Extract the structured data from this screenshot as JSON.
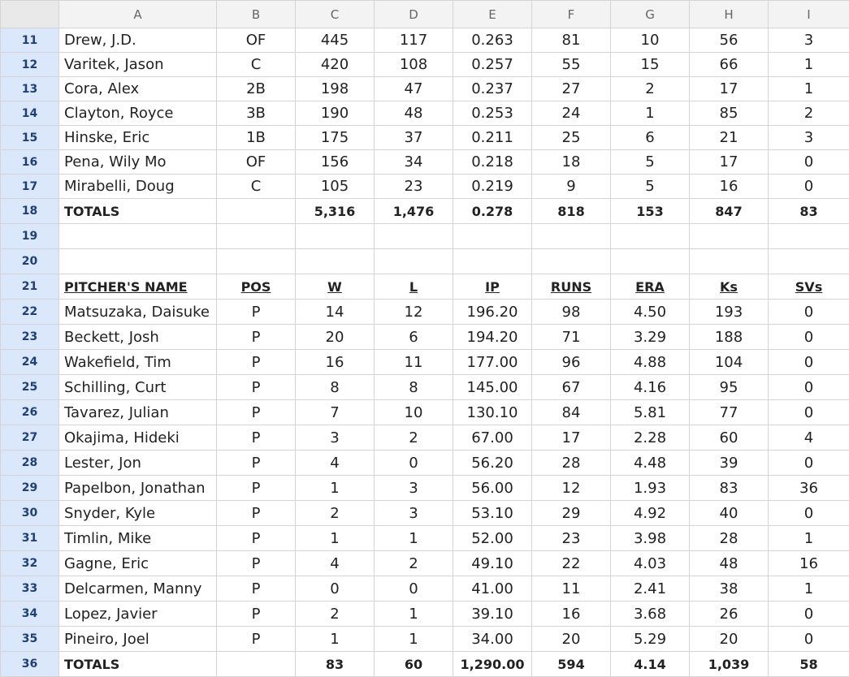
{
  "columns": [
    "A",
    "B",
    "C",
    "D",
    "E",
    "F",
    "G",
    "H",
    "I"
  ],
  "rows": [
    {
      "num": "11",
      "cells": [
        "Drew, J.D.",
        "OF",
        "445",
        "117",
        "0.263",
        "81",
        "10",
        "56",
        "3"
      ]
    },
    {
      "num": "12",
      "cells": [
        "Varitek, Jason",
        "C",
        "420",
        "108",
        "0.257",
        "55",
        "15",
        "66",
        "1"
      ]
    },
    {
      "num": "13",
      "cells": [
        "Cora, Alex",
        "2B",
        "198",
        "47",
        "0.237",
        "27",
        "2",
        "17",
        "1"
      ]
    },
    {
      "num": "14",
      "cells": [
        "Clayton, Royce",
        "3B",
        "190",
        "48",
        "0.253",
        "24",
        "1",
        "85",
        "2"
      ]
    },
    {
      "num": "15",
      "cells": [
        "Hinske, Eric",
        "1B",
        "175",
        "37",
        "0.211",
        "25",
        "6",
        "21",
        "3"
      ]
    },
    {
      "num": "16",
      "cells": [
        "Pena, Wily Mo",
        "OF",
        "156",
        "34",
        "0.218",
        "18",
        "5",
        "17",
        "0"
      ]
    },
    {
      "num": "17",
      "cells": [
        "Mirabelli, Doug",
        "C",
        "105",
        "23",
        "0.219",
        "9",
        "5",
        "16",
        "0"
      ]
    },
    {
      "num": "18",
      "type": "totals",
      "cells": [
        "TOTALS",
        "",
        "5,316",
        "1,476",
        "0.278",
        "818",
        "153",
        "847",
        "83"
      ]
    },
    {
      "num": "19",
      "cells": [
        "",
        "",
        "",
        "",
        "",
        "",
        "",
        "",
        ""
      ]
    },
    {
      "num": "20",
      "cells": [
        "",
        "",
        "",
        "",
        "",
        "",
        "",
        "",
        ""
      ]
    },
    {
      "num": "21",
      "type": "header",
      "cells": [
        "PITCHER'S NAME",
        "POS",
        "W",
        "L",
        "IP",
        "RUNS",
        "ERA",
        "Ks",
        "SVs"
      ]
    },
    {
      "num": "22",
      "cells": [
        "Matsuzaka, Daisuke",
        "P",
        "14",
        "12",
        "196.20",
        "98",
        "4.50",
        "193",
        "0"
      ]
    },
    {
      "num": "23",
      "cells": [
        "Beckett, Josh",
        "P",
        "20",
        "6",
        "194.20",
        "71",
        "3.29",
        "188",
        "0"
      ]
    },
    {
      "num": "24",
      "cells": [
        "Wakefield, Tim",
        "P",
        "16",
        "11",
        "177.00",
        "96",
        "4.88",
        "104",
        "0"
      ]
    },
    {
      "num": "25",
      "cells": [
        "Schilling, Curt",
        "P",
        "8",
        "8",
        "145.00",
        "67",
        "4.16",
        "95",
        "0"
      ]
    },
    {
      "num": "26",
      "cells": [
        "Tavarez, Julian",
        "P",
        "7",
        "10",
        "130.10",
        "84",
        "5.81",
        "77",
        "0"
      ]
    },
    {
      "num": "27",
      "cells": [
        "Okajima, Hideki",
        "P",
        "3",
        "2",
        "67.00",
        "17",
        "2.28",
        "60",
        "4"
      ]
    },
    {
      "num": "28",
      "cells": [
        "Lester, Jon",
        "P",
        "4",
        "0",
        "56.20",
        "28",
        "4.48",
        "39",
        "0"
      ]
    },
    {
      "num": "29",
      "cells": [
        "Papelbon, Jonathan",
        "P",
        "1",
        "3",
        "56.00",
        "12",
        "1.93",
        "83",
        "36"
      ]
    },
    {
      "num": "30",
      "cells": [
        "Snyder, Kyle",
        "P",
        "2",
        "3",
        "53.10",
        "29",
        "4.92",
        "40",
        "0"
      ]
    },
    {
      "num": "31",
      "cells": [
        "Timlin, Mike",
        "P",
        "1",
        "1",
        "52.00",
        "23",
        "3.98",
        "28",
        "1"
      ]
    },
    {
      "num": "32",
      "cells": [
        "Gagne, Eric",
        "P",
        "4",
        "2",
        "49.10",
        "22",
        "4.03",
        "48",
        "16"
      ]
    },
    {
      "num": "33",
      "cells": [
        "Delcarmen, Manny",
        "P",
        "0",
        "0",
        "41.00",
        "11",
        "2.41",
        "38",
        "1"
      ]
    },
    {
      "num": "34",
      "cells": [
        "Lopez, Javier",
        "P",
        "2",
        "1",
        "39.10",
        "16",
        "3.68",
        "26",
        "0"
      ]
    },
    {
      "num": "35",
      "cells": [
        "Pineiro, Joel",
        "P",
        "1",
        "1",
        "34.00",
        "20",
        "5.29",
        "20",
        "0"
      ]
    },
    {
      "num": "36",
      "type": "totals",
      "cells": [
        "TOTALS",
        "",
        "83",
        "60",
        "1,290.00",
        "594",
        "4.14",
        "1,039",
        "58"
      ]
    }
  ]
}
